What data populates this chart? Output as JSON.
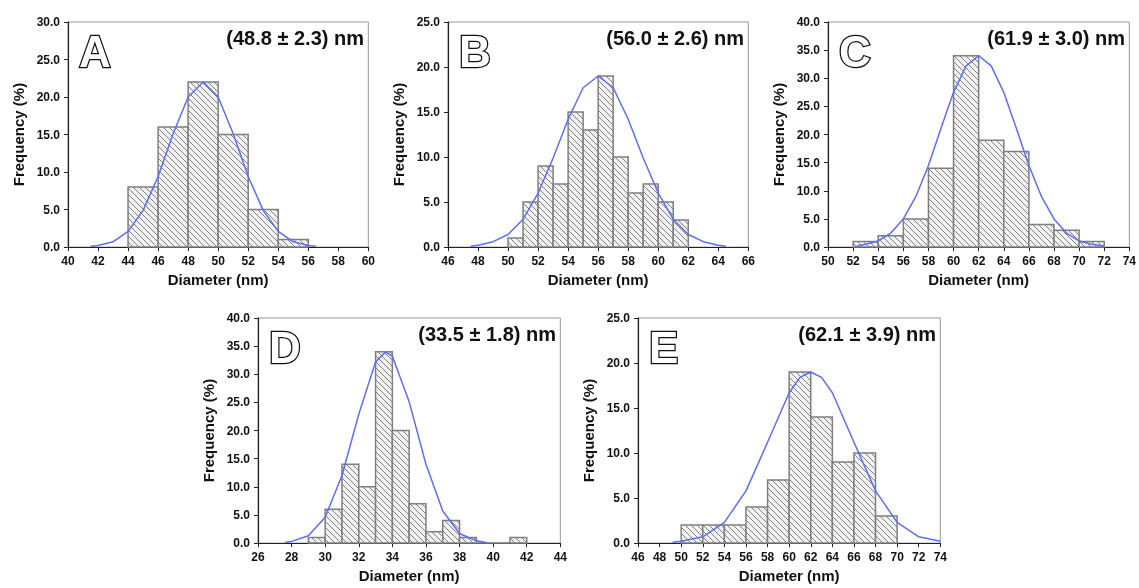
{
  "chart_data": [
    {
      "type": "histogram",
      "title": "A",
      "annotations": [
        "(48.8 ± 2.3) nm"
      ],
      "xlabel": "Diameter (nm)",
      "ylabel": "Frequency (%)",
      "xlim": [
        40,
        60
      ],
      "xticks": [
        40,
        42,
        44,
        46,
        48,
        50,
        52,
        54,
        56,
        58,
        60
      ],
      "ylim": [
        0,
        30
      ],
      "yticks": [
        {
          "value": 0,
          "label": "0.0"
        },
        {
          "value": 5,
          "label": "5.0"
        },
        {
          "value": 10,
          "label": "10.0"
        },
        {
          "value": 15,
          "label": "15.0"
        },
        {
          "value": 20,
          "label": "20.0"
        },
        {
          "value": 25,
          "label": "25.0"
        },
        {
          "value": 30,
          "label": "30.0"
        }
      ],
      "series": [
        {
          "color": "#7f7f7f",
          "bins": [
            44,
            46,
            48,
            50,
            52,
            54,
            56
          ],
          "values": [
            8,
            16,
            22,
            15,
            5,
            1
          ]
        },
        {
          "type": "line",
          "color": "#5b6ef5",
          "x": [
            41.5,
            42,
            43,
            44,
            45,
            46,
            47,
            48,
            49,
            50,
            51,
            52,
            53,
            54,
            55,
            56,
            56.5
          ],
          "values": [
            0.1,
            0.2,
            0.7,
            2.1,
            4.9,
            9.4,
            15.1,
            20.0,
            22.0,
            20.0,
            15.1,
            9.4,
            4.9,
            2.1,
            0.7,
            0.2,
            0.1
          ]
        }
      ]
    },
    {
      "type": "histogram",
      "title": "B",
      "annotations": [
        "(56.0 ± 2.6) nm"
      ],
      "xlabel": "Diameter (nm)",
      "ylabel": "Frequency (%)",
      "xlim": [
        46,
        66
      ],
      "xticks": [
        46,
        48,
        50,
        52,
        54,
        56,
        58,
        60,
        62,
        64,
        66
      ],
      "ylim": [
        0,
        25
      ],
      "yticks": [
        {
          "value": 0,
          "label": "0.0"
        },
        {
          "value": 5,
          "label": "5.0"
        },
        {
          "value": 10,
          "label": "10.0"
        },
        {
          "value": 15,
          "label": "15.0"
        },
        {
          "value": 20,
          "label": "20.0"
        },
        {
          "value": 25,
          "label": "25.0"
        }
      ],
      "series": [
        {
          "color": "#7f7f7f",
          "bins": [
            50,
            51,
            52,
            53,
            54,
            55,
            56,
            57,
            58,
            59,
            60,
            61,
            62
          ],
          "values": [
            1,
            5,
            9,
            7,
            15,
            13,
            19,
            10,
            6,
            7,
            5,
            3
          ]
        },
        {
          "type": "line",
          "color": "#5b6ef5",
          "x": [
            47.5,
            48,
            49,
            50,
            51,
            52,
            53,
            54,
            55,
            56,
            57,
            58,
            59,
            60,
            61,
            62,
            63,
            64,
            64.5
          ],
          "values": [
            0.1,
            0.2,
            0.6,
            1.4,
            3.1,
            6.0,
            9.9,
            14.2,
            17.7,
            19.0,
            17.7,
            14.2,
            9.9,
            6.0,
            3.1,
            1.4,
            0.6,
            0.2,
            0.1
          ]
        }
      ]
    },
    {
      "type": "histogram",
      "title": "C",
      "annotations": [
        "(61.9 ± 3.0) nm"
      ],
      "xlabel": "Diameter (nm)",
      "ylabel": "Frequency (%)",
      "xlim": [
        50,
        74
      ],
      "xticks": [
        50,
        52,
        54,
        56,
        58,
        60,
        62,
        64,
        66,
        68,
        70,
        72,
        74
      ],
      "ylim": [
        0,
        40
      ],
      "yticks": [
        {
          "value": 0,
          "label": "0.0"
        },
        {
          "value": 5,
          "label": "5.0"
        },
        {
          "value": 10,
          "label": "10.0"
        },
        {
          "value": 15,
          "label": "15.0"
        },
        {
          "value": 20,
          "label": "20.0"
        },
        {
          "value": 25,
          "label": "25.0"
        },
        {
          "value": 30,
          "label": "30.0"
        },
        {
          "value": 35,
          "label": "35.0"
        },
        {
          "value": 40,
          "label": "40.0"
        }
      ],
      "series": [
        {
          "color": "#7f7f7f",
          "bins": [
            52,
            54,
            56,
            58,
            60,
            62,
            64,
            66,
            68,
            70,
            72
          ],
          "values": [
            1,
            2,
            5,
            14,
            34,
            19,
            17,
            4,
            3,
            1
          ]
        },
        {
          "type": "line",
          "color": "#5b6ef5",
          "x": [
            52.3,
            53,
            54,
            55,
            56,
            57,
            58,
            59,
            60,
            61,
            62,
            63,
            64,
            65,
            66,
            67,
            68,
            69,
            70,
            71,
            72
          ],
          "values": [
            0.2,
            0.5,
            1.1,
            2.5,
            5.0,
            9.0,
            14.5,
            21.1,
            27.5,
            32.2,
            34.0,
            32.2,
            27.5,
            21.1,
            14.5,
            9.0,
            5.0,
            2.5,
            1.1,
            0.5,
            0.2
          ]
        }
      ]
    },
    {
      "type": "histogram",
      "title": "D",
      "annotations": [
        "(33.5 ± 1.8) nm"
      ],
      "xlabel": "Diameter (nm)",
      "ylabel": "Frequency (%)",
      "xlim": [
        26,
        44
      ],
      "xticks": [
        26,
        28,
        30,
        32,
        34,
        36,
        38,
        40,
        42,
        44
      ],
      "ylim": [
        0,
        40
      ],
      "yticks": [
        {
          "value": 0,
          "label": "0.0"
        },
        {
          "value": 5,
          "label": "5.0"
        },
        {
          "value": 10,
          "label": "10.0"
        },
        {
          "value": 15,
          "label": "15.0"
        },
        {
          "value": 20,
          "label": "20.0"
        },
        {
          "value": 25,
          "label": "25.0"
        },
        {
          "value": 30,
          "label": "30.0"
        },
        {
          "value": 35,
          "label": "35.0"
        },
        {
          "value": 40,
          "label": "40.0"
        }
      ],
      "series": [
        {
          "color": "#7f7f7f",
          "bins": [
            29,
            30,
            31,
            32,
            33,
            34,
            35,
            36,
            37,
            38,
            39,
            40,
            41,
            42
          ],
          "values": [
            1,
            6,
            14,
            10,
            34,
            20,
            7,
            2,
            4,
            1,
            0,
            0,
            1
          ]
        },
        {
          "type": "line",
          "color": "#5b6ef5",
          "x": [
            27.6,
            28,
            29,
            30,
            31,
            32,
            33,
            33.6,
            34,
            35,
            36,
            37,
            38,
            39,
            39.6
          ],
          "values": [
            0.1,
            0.3,
            1.3,
            4.6,
            12.0,
            22.9,
            32.2,
            34.0,
            33.2,
            25.1,
            14.0,
            5.7,
            1.7,
            0.4,
            0.1
          ]
        }
      ]
    },
    {
      "type": "histogram",
      "title": "E",
      "annotations": [
        "(62.1 ± 3.9) nm"
      ],
      "xlabel": "Diameter (nm)",
      "ylabel": "Frequency (%)",
      "xlim": [
        46,
        74
      ],
      "xticks": [
        46,
        48,
        50,
        52,
        54,
        56,
        58,
        60,
        62,
        64,
        66,
        68,
        70,
        72,
        74
      ],
      "ylim": [
        0,
        25
      ],
      "yticks": [
        {
          "value": 0,
          "label": "0.0"
        },
        {
          "value": 5,
          "label": "5.0"
        },
        {
          "value": 10,
          "label": "10.0"
        },
        {
          "value": 15,
          "label": "15.0"
        },
        {
          "value": 20,
          "label": "20.0"
        },
        {
          "value": 25,
          "label": "25.0"
        }
      ],
      "series": [
        {
          "color": "#7f7f7f",
          "bins": [
            50,
            52,
            54,
            56,
            58,
            60,
            62,
            64,
            66,
            68,
            70
          ],
          "values": [
            2,
            2,
            2,
            4,
            7,
            19,
            14,
            9,
            10,
            3
          ]
        },
        {
          "type": "line",
          "color": "#5b6ef5",
          "x": [
            49.2,
            50,
            52,
            54,
            56,
            58,
            60,
            61,
            62,
            63,
            64,
            66,
            68,
            70,
            72,
            74
          ],
          "values": [
            0.1,
            0.2,
            0.7,
            2.3,
            5.8,
            11.2,
            16.7,
            18.4,
            19.0,
            18.4,
            16.7,
            11.2,
            5.8,
            2.3,
            0.7,
            0.2
          ]
        }
      ]
    }
  ]
}
